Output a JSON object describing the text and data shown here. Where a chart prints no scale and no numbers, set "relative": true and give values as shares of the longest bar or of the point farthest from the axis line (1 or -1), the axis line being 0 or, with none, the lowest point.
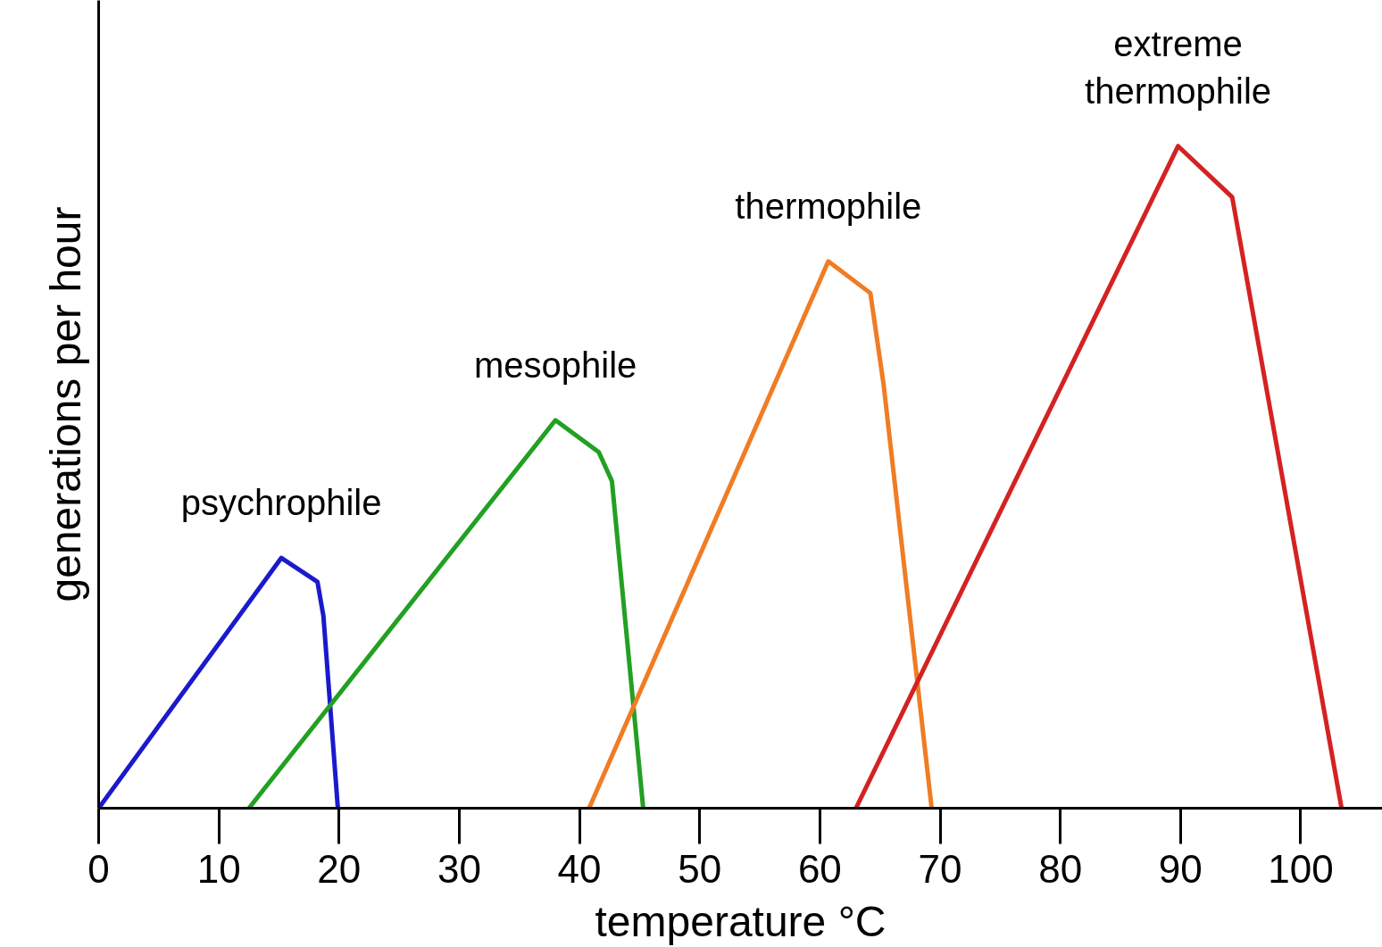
{
  "chart_data": {
    "type": "line",
    "relative": true,
    "xlabel": "temperature °C",
    "ylabel": "generations per hour",
    "xlim": [
      0,
      106.8
    ],
    "xticks": [
      0,
      10,
      20,
      30,
      40,
      50,
      60,
      70,
      80,
      90,
      100
    ],
    "grid": false,
    "marker": "none",
    "line_style": "solid",
    "series": [
      {
        "name": "psychrophile",
        "color": "#1a1acc",
        "x": [
          0,
          15.2,
          18.2,
          18.7,
          19.9
        ],
        "values": [
          0,
          0.378,
          0.342,
          0.29,
          0
        ]
      },
      {
        "name": "mesophile",
        "color": "#22a022",
        "x": [
          12.5,
          38.0,
          41.6,
          42.7,
          45.3
        ],
        "values": [
          0,
          0.586,
          0.538,
          0.494,
          0
        ]
      },
      {
        "name": "thermophile",
        "color": "#f07c24",
        "x": [
          40.8,
          60.7,
          64.2,
          65.3,
          69.3
        ],
        "values": [
          0,
          0.826,
          0.778,
          0.64,
          0
        ]
      },
      {
        "name": "extreme thermophile",
        "color": "#d42222",
        "x": [
          63.0,
          89.8,
          94.3,
          103.4
        ],
        "values": [
          0,
          1.0,
          0.923,
          0
        ]
      }
    ]
  }
}
